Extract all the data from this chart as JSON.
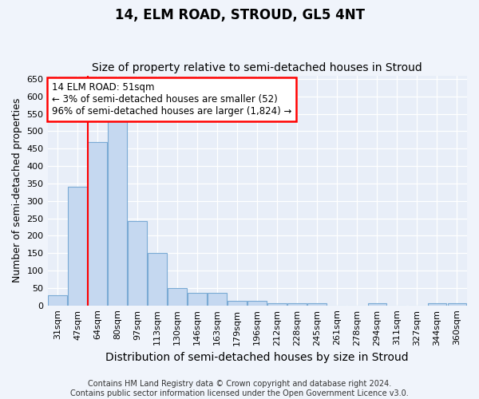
{
  "title": "14, ELM ROAD, STROUD, GL5 4NT",
  "subtitle": "Size of property relative to semi-detached houses in Stroud",
  "xlabel": "Distribution of semi-detached houses by size in Stroud",
  "ylabel": "Number of semi-detached properties",
  "categories": [
    "31sqm",
    "47sqm",
    "64sqm",
    "80sqm",
    "97sqm",
    "113sqm",
    "130sqm",
    "146sqm",
    "163sqm",
    "179sqm",
    "196sqm",
    "212sqm",
    "228sqm",
    "245sqm",
    "261sqm",
    "278sqm",
    "294sqm",
    "311sqm",
    "327sqm",
    "344sqm",
    "360sqm"
  ],
  "values": [
    30,
    340,
    468,
    533,
    242,
    151,
    49,
    37,
    35,
    13,
    13,
    6,
    6,
    6,
    0,
    0,
    5,
    0,
    0,
    5,
    5
  ],
  "bar_color": "#c5d8f0",
  "bar_edge_color": "#7aaad4",
  "red_line_x": 1.5,
  "annotation_text": "14 ELM ROAD: 51sqm\n← 3% of semi-detached houses are smaller (52)\n96% of semi-detached houses are larger (1,824) →",
  "ylim": [
    0,
    660
  ],
  "yticks": [
    0,
    50,
    100,
    150,
    200,
    250,
    300,
    350,
    400,
    450,
    500,
    550,
    600,
    650
  ],
  "footer_line1": "Contains HM Land Registry data © Crown copyright and database right 2024.",
  "footer_line2": "Contains public sector information licensed under the Open Government Licence v3.0.",
  "bg_color": "#f0f4fb",
  "plot_bg_color": "#e8eef8",
  "grid_color": "#ffffff",
  "title_fontsize": 12,
  "subtitle_fontsize": 10,
  "axis_label_fontsize": 9,
  "tick_fontsize": 8,
  "footer_fontsize": 7,
  "annot_fontsize": 8.5
}
